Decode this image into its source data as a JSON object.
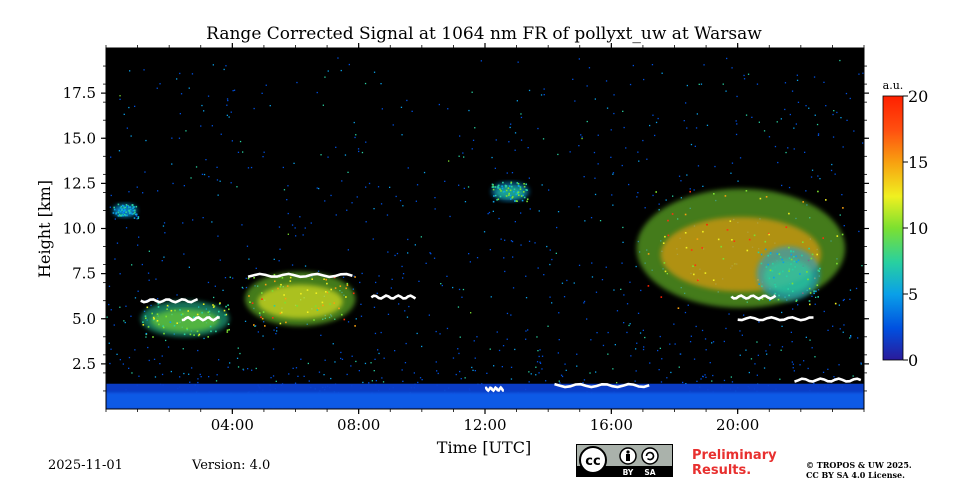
{
  "chart_data": {
    "type": "heatmap",
    "title": "Range Corrected Signal at 1064 nm FR of pollyxt_uw at Warsaw",
    "xlabel": "Time [UTC]",
    "ylabel": "Height [km]",
    "xlim": [
      0,
      24
    ],
    "ylim": [
      0,
      20
    ],
    "x_ticks": [
      {
        "value": 4,
        "label": "04:00"
      },
      {
        "value": 8,
        "label": "08:00"
      },
      {
        "value": 12,
        "label": "12:00"
      },
      {
        "value": 16,
        "label": "16:00"
      },
      {
        "value": 20,
        "label": "20:00"
      }
    ],
    "y_ticks": [
      {
        "value": 2.5,
        "label": "2.5"
      },
      {
        "value": 5.0,
        "label": "5.0"
      },
      {
        "value": 7.5,
        "label": "7.5"
      },
      {
        "value": 10.0,
        "label": "10.0"
      },
      {
        "value": 12.5,
        "label": "12.5"
      },
      {
        "value": 15.0,
        "label": "15.0"
      },
      {
        "value": 17.5,
        "label": "17.5"
      }
    ],
    "colorbar": {
      "label": "a.u.",
      "min": 0,
      "max": 20,
      "ticks": [
        {
          "value": 0,
          "label": "0"
        },
        {
          "value": 5,
          "label": "5"
        },
        {
          "value": 10,
          "label": "10"
        },
        {
          "value": 15,
          "label": "15"
        },
        {
          "value": 20,
          "label": "20"
        }
      ],
      "colormap": [
        "#2a1a9a",
        "#0050e0",
        "#0aa0e8",
        "#28d0a0",
        "#7ce030",
        "#f0f020",
        "#f8a010",
        "#ff3010",
        "#ff2000"
      ]
    },
    "features": [
      {
        "name": "boundary-layer",
        "t_start": 0,
        "t_end": 24,
        "h_bottom": 0,
        "h_top": 1.4,
        "value": 3
      },
      {
        "name": "cloud-morning-low",
        "t_start": 1.1,
        "t_end": 3.9,
        "h_bottom": 4.0,
        "h_top": 6.0,
        "value": 12
      },
      {
        "name": "cloud-morning-main",
        "t_start": 4.4,
        "t_end": 7.9,
        "h_bottom": 4.6,
        "h_top": 7.6,
        "value": 17
      },
      {
        "name": "cloud-noon-cirrus",
        "t_start": 12.2,
        "t_end": 13.4,
        "h_bottom": 11.5,
        "h_top": 12.6,
        "value": 10
      },
      {
        "name": "cloud-afternoon-cirrus",
        "t_start": 16.8,
        "t_end": 23.4,
        "h_bottom": 5.6,
        "h_top": 12.2,
        "value": 18
      },
      {
        "name": "cloud-evening-secondary",
        "t_start": 20.6,
        "t_end": 22.6,
        "h_bottom": 6.0,
        "h_top": 9.0,
        "value": 9
      },
      {
        "name": "cloud-early-patch",
        "t_start": 0.2,
        "t_end": 1.0,
        "h_bottom": 10.6,
        "h_top": 11.4,
        "value": 7
      }
    ],
    "saturated_segments": [
      {
        "t_start": 1.1,
        "t_end": 2.9,
        "h": 6.0
      },
      {
        "t_start": 2.4,
        "t_end": 3.6,
        "h": 5.0
      },
      {
        "t_start": 4.5,
        "t_end": 7.8,
        "h": 7.4
      },
      {
        "t_start": 8.4,
        "t_end": 9.8,
        "h": 6.2
      },
      {
        "t_start": 12.0,
        "t_end": 12.6,
        "h": 1.1
      },
      {
        "t_start": 14.2,
        "t_end": 17.2,
        "h": 1.3
      },
      {
        "t_start": 19.8,
        "t_end": 21.2,
        "h": 6.2
      },
      {
        "t_start": 20.0,
        "t_end": 22.4,
        "h": 5.0
      },
      {
        "t_start": 21.8,
        "t_end": 23.9,
        "h": 1.6
      }
    ]
  },
  "footer": {
    "date": "2025-11-01",
    "version": "Version: 4.0",
    "preliminary_line1": "Preliminary",
    "preliminary_line2": "Results.",
    "copyright_line1": "© TROPOS & UW 2025.",
    "copyright_line2": "CC BY SA 4.0 License.",
    "cc_symbol": "cc",
    "cc_by": "BY",
    "cc_sa": "SA"
  },
  "colors": {
    "prelim_red": "#e8302f",
    "plot_background": "#000000"
  }
}
